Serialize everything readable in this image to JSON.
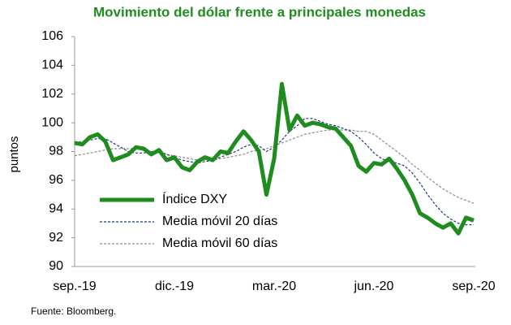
{
  "chart_data": {
    "type": "line",
    "title": "Movimiento del dólar frente a principales monedas",
    "ylabel": "puntos",
    "source": "Fuente: Bloomberg.",
    "categories": [
      "sep.-19",
      null,
      null,
      null,
      null,
      null,
      null,
      null,
      null,
      null,
      null,
      null,
      null,
      "dic.-19",
      null,
      null,
      null,
      null,
      null,
      null,
      null,
      null,
      null,
      null,
      null,
      null,
      "mar.-20",
      null,
      null,
      null,
      null,
      null,
      null,
      null,
      null,
      null,
      null,
      null,
      null,
      "jun.-20",
      null,
      null,
      null,
      null,
      null,
      null,
      null,
      null,
      null,
      null,
      null,
      null,
      "sep.-20"
    ],
    "series": [
      {
        "name": "Índice DXY",
        "color": "#1e8c1e",
        "line_width": 5,
        "dashed": false,
        "values": [
          98.6,
          98.5,
          99.0,
          99.2,
          98.7,
          97.4,
          97.6,
          97.8,
          98.3,
          98.2,
          97.8,
          98.1,
          97.4,
          97.6,
          96.9,
          96.7,
          97.3,
          97.6,
          97.4,
          98.0,
          97.9,
          98.7,
          99.4,
          98.8,
          98.0,
          95.0,
          97.5,
          102.7,
          99.5,
          100.5,
          99.8,
          100.0,
          99.9,
          99.7,
          99.6,
          99.0,
          98.4,
          97.0,
          96.6,
          97.2,
          97.1,
          97.5,
          96.8,
          96.0,
          95.0,
          93.7,
          93.4,
          93.0,
          92.7,
          93.0,
          92.3,
          93.4,
          93.2
        ]
      },
      {
        "name": "Media móvil 20 días",
        "color": "#1f3a7a",
        "line_width": 1.2,
        "dashed": true,
        "values": [
          98.6,
          98.7,
          98.8,
          98.9,
          98.9,
          98.6,
          98.3,
          98.0,
          97.9,
          97.9,
          98.0,
          98.0,
          97.8,
          97.6,
          97.4,
          97.3,
          97.2,
          97.3,
          97.4,
          97.6,
          97.8,
          98.0,
          98.3,
          98.5,
          98.4,
          98.0,
          98.3,
          98.8,
          99.4,
          99.8,
          100.3,
          100.3,
          100.1,
          99.9,
          99.8,
          99.6,
          99.4,
          99.0,
          98.5,
          97.9,
          97.5,
          97.3,
          97.2,
          97.0,
          96.5,
          95.8,
          95.0,
          94.3,
          93.7,
          93.3,
          93.0,
          92.9,
          92.9
        ]
      },
      {
        "name": "Media móvil 60 días",
        "color": "#8c8c8c",
        "line_width": 1.2,
        "dashed": true,
        "values": [
          97.7,
          97.8,
          97.9,
          98.0,
          98.1,
          98.2,
          98.2,
          98.2,
          98.2,
          98.1,
          98.0,
          97.9,
          97.8,
          97.7,
          97.6,
          97.5,
          97.4,
          97.4,
          97.4,
          97.5,
          97.6,
          97.7,
          97.8,
          98.0,
          98.1,
          98.2,
          98.4,
          98.6,
          98.8,
          99.0,
          99.2,
          99.3,
          99.4,
          99.5,
          99.5,
          99.5,
          99.5,
          99.4,
          99.4,
          99.2,
          98.8,
          98.4,
          98.0,
          97.6,
          97.1,
          96.7,
          96.2,
          95.8,
          95.4,
          95.1,
          94.8,
          94.6,
          94.4
        ]
      }
    ],
    "ylim": [
      90,
      106
    ],
    "yticks": [
      90,
      92,
      94,
      96,
      98,
      100,
      102,
      104,
      106
    ],
    "grid": false,
    "legend": "lower left"
  }
}
